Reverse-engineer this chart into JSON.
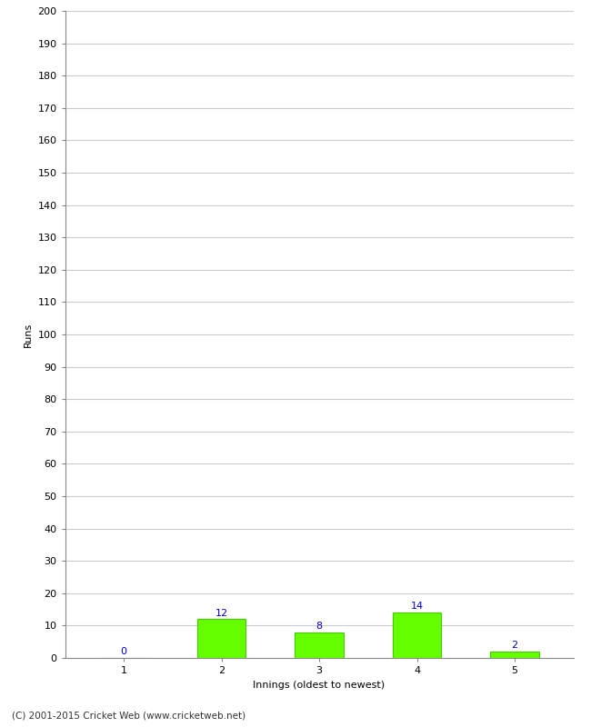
{
  "categories": [
    1,
    2,
    3,
    4,
    5
  ],
  "values": [
    0,
    12,
    8,
    14,
    2
  ],
  "bar_color": "#66ff00",
  "bar_edge_color": "#44cc00",
  "xlabel": "Innings (oldest to newest)",
  "ylabel": "Runs",
  "ylim": [
    0,
    200
  ],
  "yticks": [
    0,
    10,
    20,
    30,
    40,
    50,
    60,
    70,
    80,
    90,
    100,
    110,
    120,
    130,
    140,
    150,
    160,
    170,
    180,
    190,
    200
  ],
  "label_color": "#0000cc",
  "label_fontsize": 8,
  "axis_fontsize": 8,
  "tick_fontsize": 8,
  "footer": "(C) 2001-2015 Cricket Web (www.cricketweb.net)",
  "background_color": "#ffffff",
  "grid_color": "#cccccc"
}
